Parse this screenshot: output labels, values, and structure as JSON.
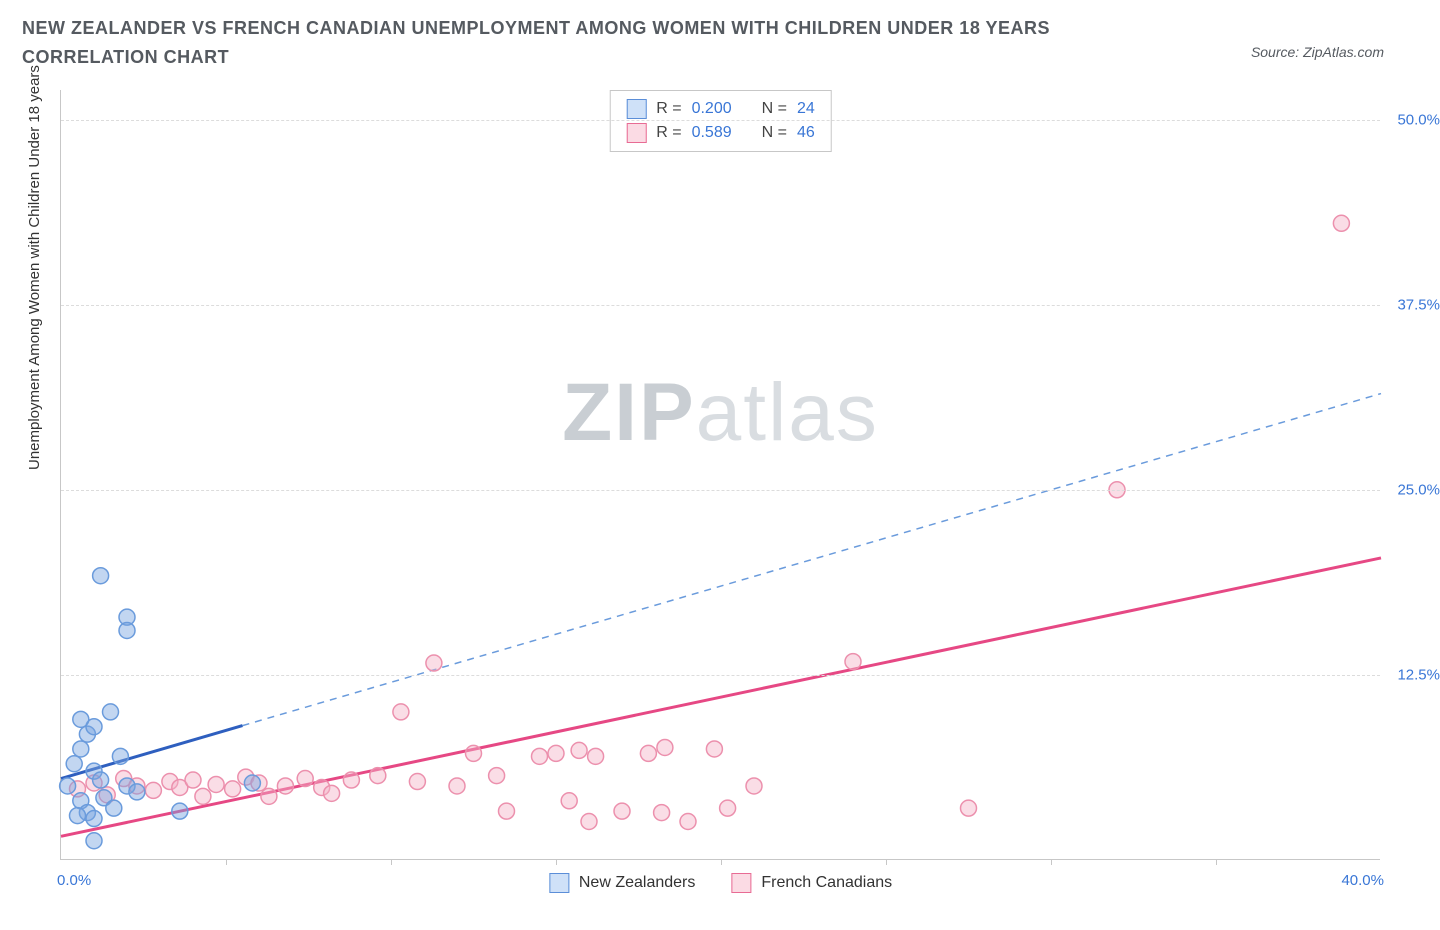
{
  "header": {
    "title": "NEW ZEALANDER VS FRENCH CANADIAN UNEMPLOYMENT AMONG WOMEN WITH CHILDREN UNDER 18 YEARS CORRELATION CHART",
    "source_label": "Source: ZipAtlas.com"
  },
  "axes": {
    "y_label": "Unemployment Among Women with Children Under 18 years",
    "x_min": 0,
    "x_max": 40,
    "y_min": 0,
    "y_max": 52,
    "x_start_label": "0.0%",
    "x_end_label": "40.0%",
    "y_ticks": [
      {
        "v": 12.5,
        "label": "12.5%"
      },
      {
        "v": 25.0,
        "label": "25.0%"
      },
      {
        "v": 37.5,
        "label": "37.5%"
      },
      {
        "v": 50.0,
        "label": "50.0%"
      }
    ],
    "x_tick_step": 5,
    "grid_color": "#dcdcdc",
    "axis_color": "#c7c7c7"
  },
  "watermark": {
    "zip": "ZIP",
    "atlas": "atlas"
  },
  "stats": {
    "rows": [
      {
        "swatch_fill": "#cfe1f8",
        "swatch_border": "#5b8ed8",
        "r_label": "R =",
        "r": "0.200",
        "n_label": "N =",
        "n": "24"
      },
      {
        "swatch_fill": "#fbdbe4",
        "swatch_border": "#e86b94",
        "r_label": "R =",
        "r": "0.589",
        "n_label": "N =",
        "n": "46"
      }
    ]
  },
  "legend": {
    "items": [
      {
        "swatch_fill": "#cfe1f8",
        "swatch_border": "#5b8ed8",
        "label": "New Zealanders"
      },
      {
        "swatch_fill": "#fbdbe4",
        "swatch_border": "#e86b94",
        "label": "French Canadians"
      }
    ]
  },
  "series": {
    "nz": {
      "color_fill": "rgba(120,165,225,0.45)",
      "color_stroke": "#6a9bdc",
      "marker_radius": 8,
      "trend_color": "#2e5fbf",
      "trend_dash_color": "#6a9bdc",
      "trend_solid_end_x": 5.5,
      "trend_y0": 5.5,
      "trend_slope": 0.65,
      "points": [
        [
          0.2,
          5.0
        ],
        [
          0.4,
          6.5
        ],
        [
          0.6,
          7.5
        ],
        [
          0.6,
          4.0
        ],
        [
          0.8,
          8.5
        ],
        [
          0.8,
          3.2
        ],
        [
          1.0,
          6.0
        ],
        [
          1.0,
          9.0
        ],
        [
          1.0,
          2.8
        ],
        [
          1.2,
          5.4
        ],
        [
          1.3,
          4.2
        ],
        [
          1.5,
          10.0
        ],
        [
          1.6,
          3.5
        ],
        [
          1.8,
          7.0
        ],
        [
          2.0,
          5.0
        ],
        [
          2.3,
          4.6
        ],
        [
          1.0,
          1.3
        ],
        [
          2.0,
          16.4
        ],
        [
          2.0,
          15.5
        ],
        [
          1.2,
          19.2
        ],
        [
          3.6,
          3.3
        ],
        [
          5.8,
          5.2
        ],
        [
          0.6,
          9.5
        ],
        [
          0.5,
          3.0
        ]
      ]
    },
    "fc": {
      "color_fill": "rgba(244,180,200,0.45)",
      "color_stroke": "#ec90ad",
      "marker_radius": 8,
      "trend_color": "#e64884",
      "trend_y0": 1.6,
      "trend_slope": 0.47,
      "points": [
        [
          0.5,
          4.8
        ],
        [
          1.0,
          5.2
        ],
        [
          1.4,
          4.4
        ],
        [
          1.9,
          5.5
        ],
        [
          2.3,
          5.0
        ],
        [
          2.8,
          4.7
        ],
        [
          3.3,
          5.3
        ],
        [
          3.6,
          4.9
        ],
        [
          4.0,
          5.4
        ],
        [
          4.7,
          5.1
        ],
        [
          5.2,
          4.8
        ],
        [
          5.6,
          5.6
        ],
        [
          6.0,
          5.2
        ],
        [
          6.8,
          5.0
        ],
        [
          7.4,
          5.5
        ],
        [
          7.9,
          4.9
        ],
        [
          8.8,
          5.4
        ],
        [
          9.6,
          5.7
        ],
        [
          10.3,
          10.0
        ],
        [
          10.8,
          5.3
        ],
        [
          11.3,
          13.3
        ],
        [
          12.0,
          5.0
        ],
        [
          12.5,
          7.2
        ],
        [
          13.2,
          5.7
        ],
        [
          13.5,
          3.3
        ],
        [
          14.5,
          7.0
        ],
        [
          15.0,
          7.2
        ],
        [
          15.4,
          4.0
        ],
        [
          15.7,
          7.4
        ],
        [
          16.0,
          2.6
        ],
        [
          16.2,
          7.0
        ],
        [
          17.0,
          3.3
        ],
        [
          17.8,
          7.2
        ],
        [
          18.2,
          3.2
        ],
        [
          18.3,
          7.6
        ],
        [
          19.0,
          2.6
        ],
        [
          19.8,
          7.5
        ],
        [
          20.2,
          3.5
        ],
        [
          21.0,
          5.0
        ],
        [
          24.0,
          13.4
        ],
        [
          27.5,
          3.5
        ],
        [
          32.0,
          25.0
        ],
        [
          38.8,
          43.0
        ],
        [
          4.3,
          4.3
        ],
        [
          6.3,
          4.3
        ],
        [
          8.2,
          4.5
        ]
      ]
    }
  },
  "colors": {
    "tick_label": "#3976d6",
    "text": "#555a60",
    "background": "#ffffff"
  }
}
